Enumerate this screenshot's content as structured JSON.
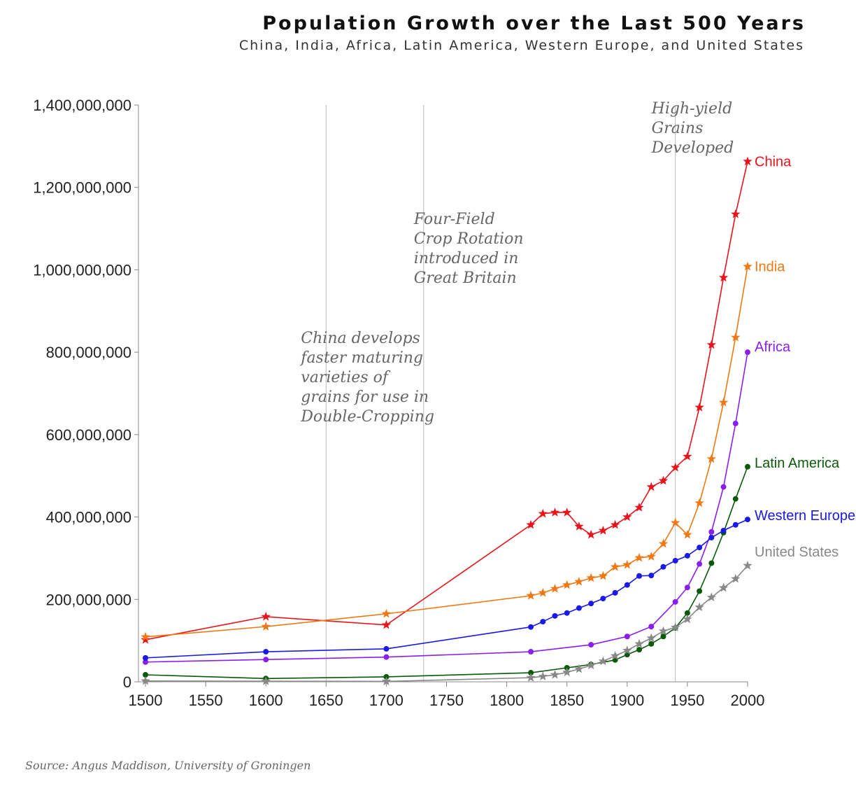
{
  "title": "Population Growth over the Last 500 Years",
  "subtitle": "China, India, Africa, Latin America, Western Europe, and United States",
  "source": "Source: Angus Maddison, University of Groningen",
  "chart_data": {
    "type": "line",
    "title": "Population Growth over the Last 500 Years",
    "xlim": [
      1500,
      2000
    ],
    "ylim": [
      0,
      1400000000
    ],
    "x_ticks": [
      "1500",
      "1550",
      "1600",
      "1650",
      "1700",
      "1750",
      "1800",
      "1850",
      "1900",
      "1950",
      "2000"
    ],
    "y_ticks": [
      "0",
      "200,000,000",
      "400,000,000",
      "600,000,000",
      "800,000,000",
      "1,000,000,000",
      "1,200,000,000",
      "1,400,000,000"
    ],
    "grid": false,
    "annotations": [
      {
        "x": 1650,
        "lines": [
          "China develops",
          "faster maturing",
          "varieties of",
          "grains for use in",
          "Double-Cropping"
        ]
      },
      {
        "x": 1731,
        "lines": [
          "Four-Field",
          "Crop Rotation",
          "introduced in",
          "Great Britain"
        ]
      },
      {
        "x": 1940,
        "lines": [
          "High-yield",
          "Grains",
          "Developed"
        ]
      }
    ],
    "series": [
      {
        "name": "China",
        "color": "#e8141c",
        "marker": "star",
        "x": [
          1500,
          1600,
          1700,
          1820,
          1830,
          1840,
          1850,
          1860,
          1870,
          1880,
          1890,
          1900,
          1910,
          1920,
          1930,
          1940,
          1950,
          1960,
          1970,
          1980,
          1990,
          2000
        ],
        "values": [
          102000000,
          158000000,
          138000000,
          381000000,
          408000000,
          411000000,
          411000000,
          377000000,
          357000000,
          367000000,
          381000000,
          400000000,
          423000000,
          473000000,
          488000000,
          520000000,
          547000000,
          666000000,
          818000000,
          981000000,
          1135000000,
          1263000000
        ]
      },
      {
        "name": "India",
        "color": "#f07814",
        "marker": "star",
        "x": [
          1500,
          1600,
          1700,
          1820,
          1830,
          1840,
          1850,
          1860,
          1870,
          1880,
          1890,
          1900,
          1910,
          1920,
          1930,
          1940,
          1950,
          1960,
          1970,
          1980,
          1990,
          2000
        ],
        "values": [
          109000000,
          134000000,
          165000000,
          209000000,
          216000000,
          226000000,
          235000000,
          243000000,
          252000000,
          257000000,
          279000000,
          284000000,
          301000000,
          304000000,
          335000000,
          386000000,
          357000000,
          434000000,
          541000000,
          678000000,
          836000000,
          1008000000
        ]
      },
      {
        "name": "Africa",
        "color": "#8a1ef0",
        "marker": "circle",
        "x": [
          1500,
          1600,
          1700,
          1820,
          1870,
          1900,
          1920,
          1940,
          1950,
          1960,
          1970,
          1980,
          1990,
          2000
        ],
        "values": [
          48000000,
          54000000,
          60000000,
          73000000,
          90000000,
          110000000,
          134000000,
          194000000,
          229000000,
          286000000,
          364000000,
          473000000,
          627000000,
          800000000
        ]
      },
      {
        "name": "Latin America",
        "color": "#0a5a0a",
        "marker": "circle",
        "x": [
          1500,
          1600,
          1700,
          1820,
          1850,
          1870,
          1890,
          1900,
          1910,
          1920,
          1930,
          1940,
          1950,
          1960,
          1970,
          1980,
          1990,
          2000
        ],
        "values": [
          17000000,
          8000000,
          12000000,
          22000000,
          34000000,
          42000000,
          53000000,
          66000000,
          78000000,
          92000000,
          110000000,
          131000000,
          167000000,
          220000000,
          288000000,
          362000000,
          444000000,
          522000000
        ]
      },
      {
        "name": "Western Europe",
        "color": "#1a1ae6",
        "marker": "circle",
        "x": [
          1500,
          1600,
          1700,
          1820,
          1830,
          1840,
          1850,
          1860,
          1870,
          1880,
          1890,
          1900,
          1910,
          1920,
          1930,
          1940,
          1950,
          1960,
          1970,
          1980,
          1990,
          2000
        ],
        "values": [
          58000000,
          73000000,
          80000000,
          133000000,
          146000000,
          160000000,
          167000000,
          179000000,
          190000000,
          202000000,
          216000000,
          235000000,
          257000000,
          258000000,
          279000000,
          294000000,
          306000000,
          326000000,
          350000000,
          367000000,
          381000000,
          394000000
        ]
      },
      {
        "name": "United States",
        "color": "#888888",
        "marker": "star",
        "x": [
          1500,
          1600,
          1700,
          1820,
          1830,
          1840,
          1850,
          1860,
          1870,
          1880,
          1890,
          1900,
          1910,
          1920,
          1930,
          1940,
          1950,
          1960,
          1970,
          1980,
          1990,
          2000
        ],
        "values": [
          2000000,
          1500000,
          1000000,
          10000000,
          13000000,
          17000000,
          23000000,
          31000000,
          40000000,
          50000000,
          63000000,
          76000000,
          92000000,
          106000000,
          123000000,
          132000000,
          152000000,
          181000000,
          205000000,
          228000000,
          250000000,
          282000000
        ]
      }
    ]
  }
}
